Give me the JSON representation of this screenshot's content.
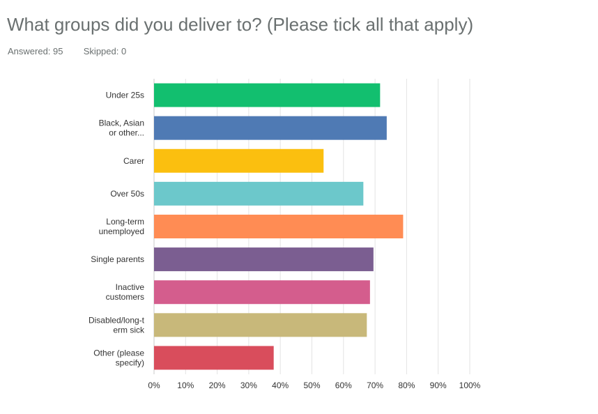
{
  "header": {
    "question": "What groups did you deliver to? (Please tick all that apply)",
    "answered_label": "Answered:",
    "answered_value": "95",
    "skipped_label": "Skipped:",
    "skipped_value": "0"
  },
  "chart_data": {
    "type": "bar",
    "orientation": "horizontal",
    "categories": [
      [
        "Under 25s"
      ],
      [
        "Black, Asian",
        "or other..."
      ],
      [
        "Carer"
      ],
      [
        "Over 50s"
      ],
      [
        "Long-term",
        "unemployed"
      ],
      [
        "Single parents"
      ],
      [
        "Inactive",
        "customers"
      ],
      [
        "Disabled/long-t",
        "erm sick"
      ],
      [
        "Other (please",
        "specify)"
      ]
    ],
    "values": [
      71.6,
      73.7,
      53.7,
      66.3,
      78.9,
      69.5,
      68.4,
      67.4,
      37.9
    ],
    "colors": [
      "#12bf6f",
      "#4f7ab4",
      "#fbbf0f",
      "#6cc8cb",
      "#ff8c54",
      "#7b5e91",
      "#d45d8d",
      "#c8b87a",
      "#d94d5c"
    ],
    "xlim": [
      0,
      100
    ],
    "ticks": [
      "0%",
      "10%",
      "20%",
      "30%",
      "40%",
      "50%",
      "60%",
      "70%",
      "80%",
      "90%",
      "100%"
    ],
    "grid": true
  }
}
